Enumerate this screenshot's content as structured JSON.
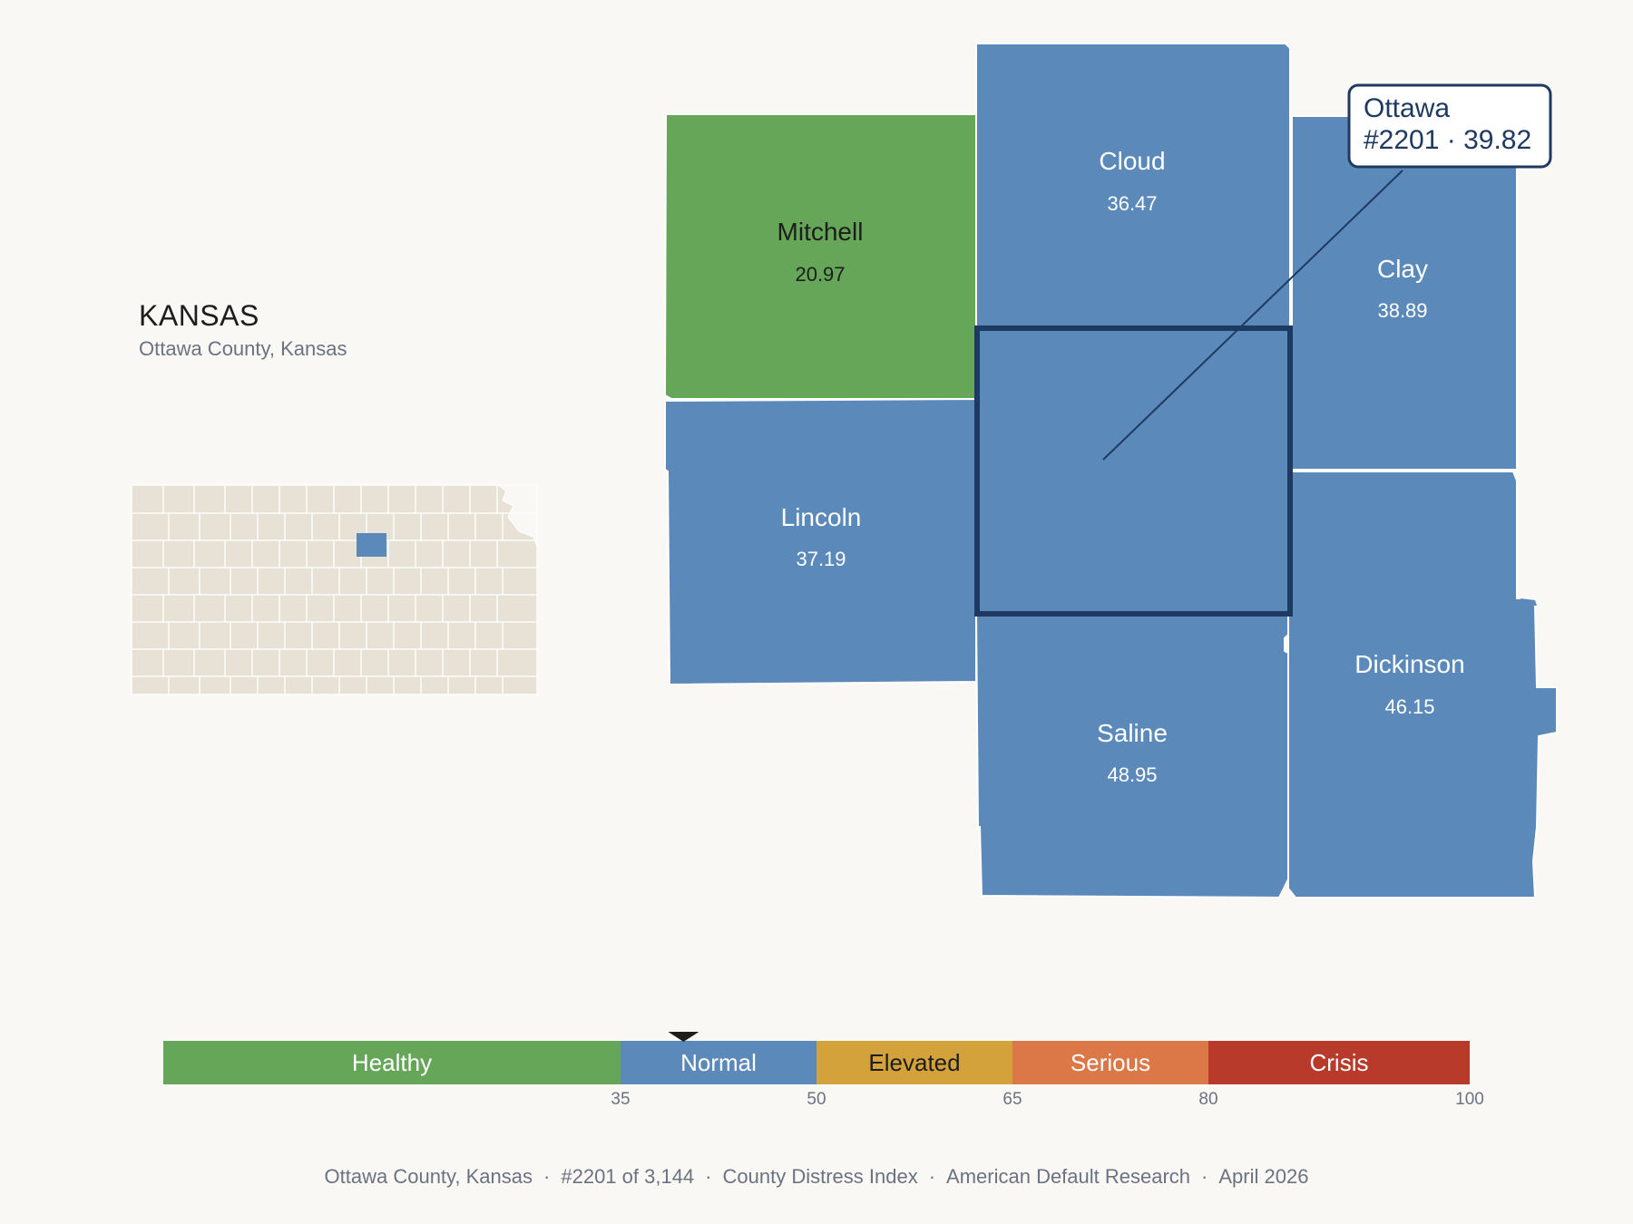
{
  "header": {
    "state": "KANSAS",
    "county_label": "Ottawa County, Kansas"
  },
  "colors": {
    "healthy": "#66a658",
    "normal": "#5b8aba",
    "elevated": "#d4a23a",
    "serious": "#dc7848",
    "crisis": "#b83a2b",
    "highlight_border": "#1f3a60",
    "inset_fill": "#e8e2d6"
  },
  "counties": [
    {
      "name": "Mitchell",
      "value": "20.97",
      "category": "healthy"
    },
    {
      "name": "Cloud",
      "value": "36.47",
      "category": "normal"
    },
    {
      "name": "Clay",
      "value": "38.89",
      "category": "normal"
    },
    {
      "name": "Lincoln",
      "value": "37.19",
      "category": "normal"
    },
    {
      "name": "Ottawa",
      "value": "39.82",
      "category": "normal",
      "highlighted": true
    },
    {
      "name": "Saline",
      "value": "48.95",
      "category": "normal"
    },
    {
      "name": "Dickinson",
      "value": "46.15",
      "category": "normal"
    }
  ],
  "callout": {
    "name": "Ottawa",
    "detail": "#2201 · 39.82"
  },
  "scale": {
    "min": 0,
    "max": 100,
    "marker_value": 39.82,
    "bands": [
      {
        "label": "Healthy",
        "from": 0,
        "to": 35,
        "category": "healthy"
      },
      {
        "label": "Normal",
        "from": 35,
        "to": 50,
        "category": "normal"
      },
      {
        "label": "Elevated",
        "from": 50,
        "to": 65,
        "category": "elevated"
      },
      {
        "label": "Serious",
        "from": 65,
        "to": 80,
        "category": "serious"
      },
      {
        "label": "Crisis",
        "from": 80,
        "to": 100,
        "category": "crisis"
      }
    ],
    "ticks": [
      "35",
      "50",
      "65",
      "80",
      "100"
    ]
  },
  "footer": {
    "parts": [
      "Ottawa County, Kansas",
      "#2201 of 3,144",
      "County Distress Index",
      "American Default Research",
      "April 2026"
    ]
  }
}
